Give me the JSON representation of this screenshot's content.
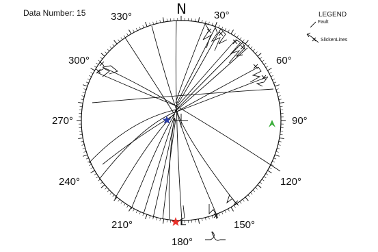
{
  "data_number_label": "Data Number: 15",
  "north_label": "N",
  "angle_labels": [
    "30°",
    "60°",
    "90°",
    "120°",
    "150°",
    "180°",
    "210°",
    "240°",
    "270°",
    "300°",
    "330°"
  ],
  "legend": {
    "title": "LEGEND",
    "fault_label": "Fault",
    "slickenlines_label": "SlickenLines"
  },
  "colors": {
    "stroke": "#111111",
    "blue_marker": "#2b3ea8",
    "red_marker": "#e8302a",
    "green_marker": "#3cae3c"
  },
  "markers": {
    "blue": "star-icon",
    "red": "star-icon",
    "green": "arrowhead-icon"
  }
}
